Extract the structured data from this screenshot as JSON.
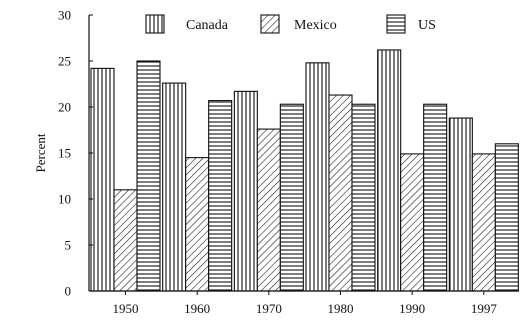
{
  "chart_data": {
    "type": "bar",
    "title": "",
    "xlabel": "",
    "ylabel": "Percent",
    "ylim": [
      0,
      30
    ],
    "yticks": [
      0,
      5,
      10,
      15,
      20,
      25,
      30
    ],
    "categories": [
      "1950",
      "1960",
      "1970",
      "1980",
      "1990",
      "1997"
    ],
    "series": [
      {
        "name": "Canada",
        "values": [
          24.2,
          22.6,
          21.7,
          24.8,
          26.2,
          18.8
        ]
      },
      {
        "name": "Mexico",
        "values": [
          11.0,
          14.5,
          17.6,
          21.3,
          14.9,
          14.9
        ]
      },
      {
        "name": "US",
        "values": [
          25.0,
          20.7,
          20.3,
          20.3,
          20.3,
          16.0
        ]
      }
    ],
    "legend": {
      "position": "top"
    },
    "grid": false,
    "colors": {
      "bar_fill": "#ffffff",
      "stroke": "#111111"
    },
    "series_patterns": [
      "vertical-lines",
      "diagonal-lines",
      "horizontal-lines"
    ]
  }
}
